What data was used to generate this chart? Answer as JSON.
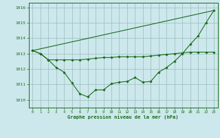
{
  "title": "Graphe pression niveau de la mer (hPa)",
  "xlim": [
    -0.5,
    23.5
  ],
  "ylim": [
    1009.5,
    1016.3
  ],
  "yticks": [
    1010,
    1011,
    1012,
    1013,
    1014,
    1015,
    1016
  ],
  "xticks": [
    0,
    1,
    2,
    3,
    4,
    5,
    6,
    7,
    8,
    9,
    10,
    11,
    12,
    13,
    14,
    15,
    16,
    17,
    18,
    19,
    20,
    21,
    22,
    23
  ],
  "bg_color": "#cce8ec",
  "line_color": "#1a6b1a",
  "grid_color": "#99bbbb",
  "line1_x": [
    0,
    1,
    2,
    3,
    4,
    5,
    6,
    7,
    8,
    9,
    10,
    11,
    12,
    13,
    14,
    15,
    16,
    17,
    18,
    19,
    20,
    21,
    22,
    23
  ],
  "line1_y": [
    1013.2,
    1013.0,
    1012.6,
    1012.1,
    1011.8,
    1011.1,
    1010.4,
    1010.2,
    1010.65,
    1010.65,
    1011.05,
    1011.15,
    1011.2,
    1011.45,
    1011.15,
    1011.2,
    1011.8,
    1012.1,
    1012.5,
    1013.0,
    1013.6,
    1014.15,
    1015.0,
    1015.8
  ],
  "line2_x": [
    0,
    1,
    2,
    3,
    4,
    5,
    6,
    7,
    8,
    9,
    10,
    11,
    12,
    13,
    14,
    15,
    16,
    17,
    18,
    19,
    20,
    21,
    22,
    23
  ],
  "line2_y": [
    1013.2,
    1013.0,
    1012.6,
    1012.6,
    1012.6,
    1012.6,
    1012.6,
    1012.65,
    1012.7,
    1012.75,
    1012.75,
    1012.8,
    1012.8,
    1012.8,
    1012.8,
    1012.85,
    1012.9,
    1012.95,
    1013.0,
    1013.05,
    1013.1,
    1013.1,
    1013.1,
    1013.1
  ],
  "line3_x": [
    0,
    23
  ],
  "line3_y": [
    1013.2,
    1015.8
  ]
}
